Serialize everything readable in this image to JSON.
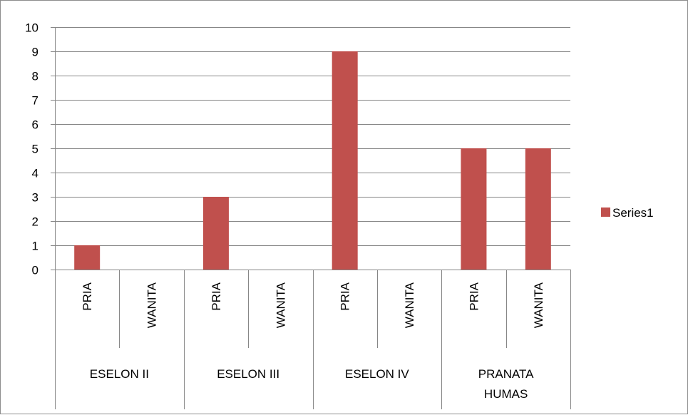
{
  "chart_data": {
    "type": "bar",
    "categories": [
      {
        "group": "ESELON II",
        "label": "PRIA"
      },
      {
        "group": "ESELON II",
        "label": "WANITA"
      },
      {
        "group": "ESELON III",
        "label": "PRIA"
      },
      {
        "group": "ESELON III",
        "label": "WANITA"
      },
      {
        "group": "ESELON IV",
        "label": "PRIA"
      },
      {
        "group": "ESELON IV",
        "label": "WANITA"
      },
      {
        "group": "PRANATA HUMAS",
        "label": "PRIA"
      },
      {
        "group": "PRANATA HUMAS",
        "label": "WANITA"
      }
    ],
    "groups": [
      {
        "lines": [
          "ESELON II"
        ]
      },
      {
        "lines": [
          "ESELON III"
        ]
      },
      {
        "lines": [
          "ESELON IV"
        ]
      },
      {
        "lines": [
          "PRANATA",
          "HUMAS"
        ]
      }
    ],
    "series": [
      {
        "name": "Series1",
        "values": [
          1,
          0,
          3,
          0,
          9,
          0,
          5,
          5
        ]
      }
    ],
    "ylim": [
      0,
      10
    ],
    "yticks": [
      "0",
      "1",
      "2",
      "3",
      "4",
      "5",
      "6",
      "7",
      "8",
      "9",
      "10"
    ],
    "grid": true,
    "legend": "right",
    "colors": {
      "bar": "#c0504d",
      "grid": "#868686",
      "axis": "#868686"
    }
  }
}
